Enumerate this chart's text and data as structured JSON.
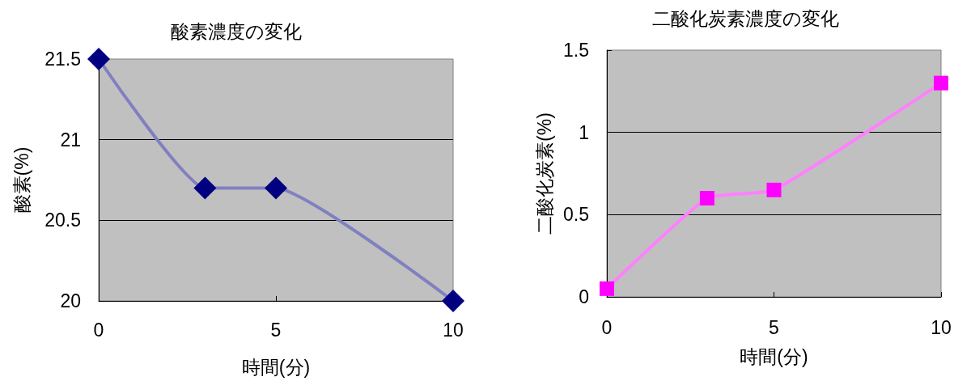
{
  "chart_data": [
    {
      "type": "line",
      "title": "酸素濃度の変化",
      "xlabel": "時間(分)",
      "ylabel": "酸素(%)",
      "x": [
        0,
        3,
        5,
        10
      ],
      "series": [
        {
          "color": "#000080",
          "values": [
            21.5,
            20.7,
            20.7,
            20.0
          ]
        }
      ],
      "xlim": [
        0,
        10
      ],
      "xticks": [
        0,
        5,
        10
      ],
      "ylim": [
        20,
        21.5
      ],
      "yticks": [
        20,
        20.5,
        21,
        21.5
      ],
      "grid": "y",
      "marker": "diamond"
    },
    {
      "type": "line",
      "title": "二酸化炭素濃度の変化",
      "xlabel": "時間(分)",
      "ylabel": "二酸化炭素(%)",
      "x": [
        0,
        3,
        5,
        10
      ],
      "series": [
        {
          "color": "#ff00ff",
          "values": [
            0.05,
            0.6,
            0.65,
            1.3
          ]
        }
      ],
      "xlim": [
        0,
        10
      ],
      "xticks": [
        0,
        5,
        10
      ],
      "ylim": [
        0,
        1.5
      ],
      "yticks": [
        0,
        0.5,
        1,
        1.5
      ],
      "grid": "y",
      "marker": "square"
    }
  ]
}
